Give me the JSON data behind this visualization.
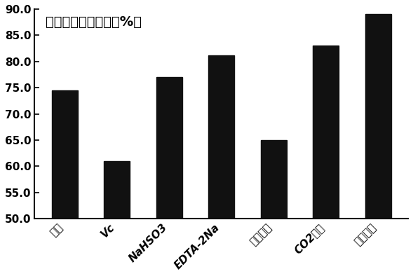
{
  "categories": [
    "空白",
    "Vc",
    "NaHSO3",
    "EDTA-2Na",
    "半胱氨酸",
    "CO2保护",
    "组合处理"
  ],
  "values": [
    74.5,
    61.0,
    77.0,
    81.2,
    65.0,
    83.0,
    89.0
  ],
  "bar_color": "#111111",
  "title_text": "自由基离子清除率（%）",
  "ylim": [
    50.0,
    90.0
  ],
  "yticks": [
    50.0,
    55.0,
    60.0,
    65.0,
    70.0,
    75.0,
    80.0,
    85.0,
    90.0
  ],
  "background_color": "#ffffff",
  "title_fontsize": 14,
  "tick_fontsize": 11,
  "bar_width": 0.5
}
